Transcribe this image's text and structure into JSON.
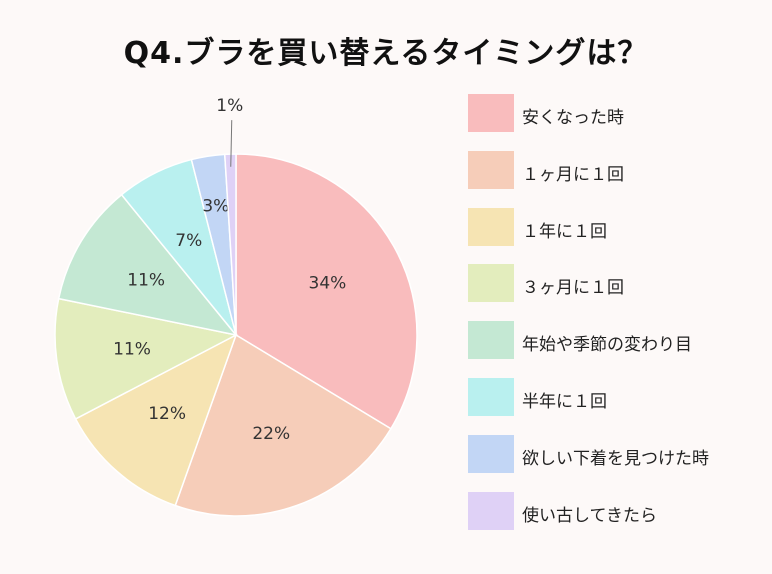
{
  "title": "Q4.ブラを買い替えるタイミングは？",
  "chart_data": {
    "type": "pie",
    "start_angle_deg": 0,
    "direction": "clockwise",
    "legend_position": "right",
    "slices": [
      {
        "label": "安くなった時",
        "value": 34,
        "value_label": "34%",
        "color": "#f9bcbd"
      },
      {
        "label": "１ヶ月に１回",
        "value": 22,
        "value_label": "22%",
        "color": "#f6cdb9"
      },
      {
        "label": "１年に１回",
        "value": 12,
        "value_label": "12%",
        "color": "#f6e4b3"
      },
      {
        "label": "３ヶ月に１回",
        "value": 11,
        "value_label": "11%",
        "color": "#e3edbd"
      },
      {
        "label": "年始や季節の変わり目",
        "value": 11,
        "value_label": "11%",
        "color": "#c4e8d3"
      },
      {
        "label": "半年に１回",
        "value": 7,
        "value_label": "7%",
        "color": "#b9f0ef"
      },
      {
        "label": "欲しい下着を見つけた時",
        "value": 3,
        "value_label": "3%",
        "color": "#c2d6f5"
      },
      {
        "label": "使い古してきたら",
        "value": 1,
        "value_label": "1%",
        "color": "#dfd1f6"
      }
    ]
  }
}
